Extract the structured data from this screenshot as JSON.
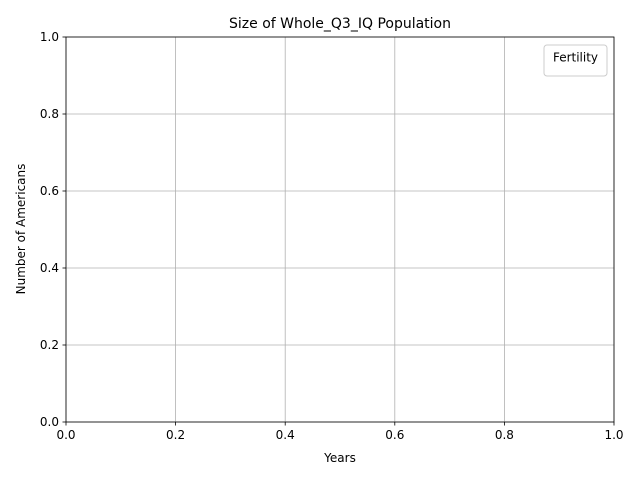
{
  "chart_data": {
    "type": "line",
    "title": "Size of Whole_Q3_IQ Population",
    "xlabel": "Years",
    "ylabel": "Number of Americans",
    "xlim": [
      0.0,
      1.0
    ],
    "ylim": [
      0.0,
      1.0
    ],
    "xticks": [
      "0.0",
      "0.2",
      "0.4",
      "0.6",
      "0.8",
      "1.0"
    ],
    "yticks": [
      "0.0",
      "0.2",
      "0.4",
      "0.6",
      "0.8",
      "1.0"
    ],
    "grid": true,
    "legend": {
      "title": "Fertility",
      "placement": "upper-right",
      "entries": []
    },
    "series": [],
    "colors": {
      "grid": "#b0b0b0",
      "axes": "#000000",
      "background": "#ffffff",
      "legend_border": "#cccccc"
    }
  }
}
